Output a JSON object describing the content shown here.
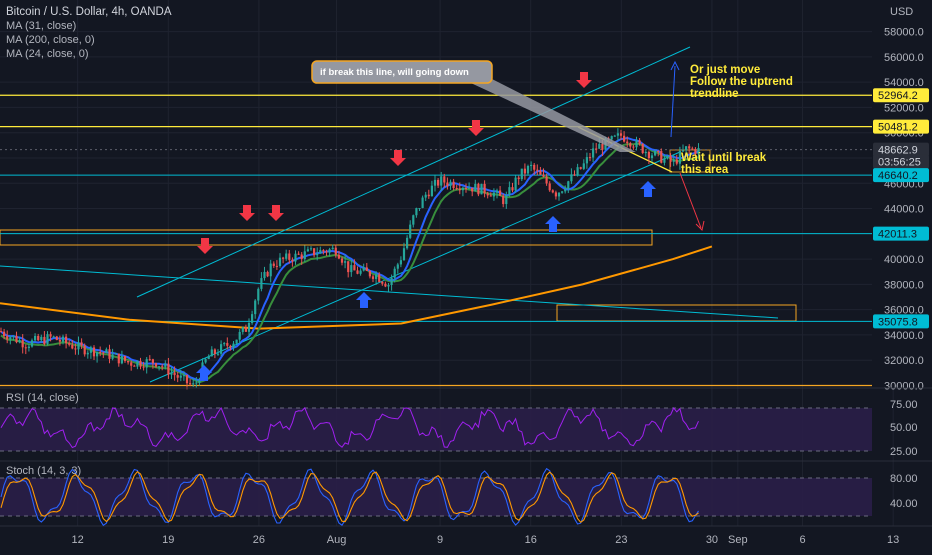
{
  "header": {
    "title": "Bitcoin / U.S. Dollar, 4h, OANDA",
    "indicators": [
      "MA (31, close)",
      "MA (200, close, 0)",
      "MA (24, close, 0)"
    ]
  },
  "price_axis": {
    "currency": "USD",
    "ticks": [
      "58000.0",
      "56000.0",
      "54000.0",
      "52000.0",
      "50000.0",
      "48000.0",
      "46000.0",
      "44000.0",
      "42000.0",
      "40000.0",
      "38000.0",
      "36000.0",
      "34000.0",
      "32000.0",
      "30000.0"
    ],
    "tags": [
      {
        "label": "52964.2",
        "kind": "level"
      },
      {
        "label": "50481.2",
        "kind": "level"
      },
      {
        "label": "48662.9",
        "kind": "last"
      },
      {
        "label": "03:56:25",
        "kind": "countdown"
      },
      {
        "label": "46640.2",
        "kind": "teal"
      },
      {
        "label": "42011.3",
        "kind": "teal"
      },
      {
        "label": "35075.8",
        "kind": "teal"
      }
    ]
  },
  "time_axis": [
    "12",
    "19",
    "26",
    "Aug",
    "9",
    "16",
    "23",
    "30",
    "Sep",
    "6",
    "13"
  ],
  "annotations": {
    "callout": "if break this line, will going down",
    "note_up": "Or just move\nFollow the uptrend\ntrendline",
    "note_wait": "Wait until break\nthis area"
  },
  "rsi": {
    "title": "RSI (14, close)",
    "ticks": [
      "75.00",
      "50.00",
      "25.00"
    ]
  },
  "stoch": {
    "title": "Stoch (14, 3, 3)",
    "ticks": [
      "80.00",
      "40.00"
    ]
  },
  "colors": {
    "bull": "#26a69a",
    "bear": "#ef5350",
    "ma200": "#ff9800",
    "ma31": "#2962ff",
    "ma24": "#388e3c",
    "level": "#ffeb3b",
    "teal": "#00bcd4",
    "arrow_down": "#f23645",
    "arrow_up": "#2962ff"
  },
  "chart_data": {
    "type": "candlestick",
    "ylim": [
      29800,
      60500
    ],
    "x_range": [
      "2021-07-06",
      "2021-09-16"
    ],
    "close_path": [
      [
        "2021-07-06",
        34300
      ],
      [
        "2021-07-08",
        33300
      ],
      [
        "2021-07-10",
        33800
      ],
      [
        "2021-07-12",
        33000
      ],
      [
        "2021-07-14",
        32600
      ],
      [
        "2021-07-16",
        31800
      ],
      [
        "2021-07-18",
        31900
      ],
      [
        "2021-07-20",
        30500
      ],
      [
        "2021-07-21",
        29900
      ],
      [
        "2021-07-22",
        32200
      ],
      [
        "2021-07-24",
        33500
      ],
      [
        "2021-07-25",
        34500
      ],
      [
        "2021-07-26",
        37800
      ],
      [
        "2021-07-27",
        39600
      ],
      [
        "2021-07-28",
        40000
      ],
      [
        "2021-07-30",
        40500
      ],
      [
        "2021-08-01",
        40800
      ],
      [
        "2021-08-02",
        39100
      ],
      [
        "2021-08-04",
        38800
      ],
      [
        "2021-08-05",
        38000
      ],
      [
        "2021-08-06",
        40200
      ],
      [
        "2021-08-07",
        43500
      ],
      [
        "2021-08-08",
        45300
      ],
      [
        "2021-08-09",
        46200
      ],
      [
        "2021-08-11",
        45800
      ],
      [
        "2021-08-13",
        45300
      ],
      [
        "2021-08-14",
        44600
      ],
      [
        "2021-08-15",
        46500
      ],
      [
        "2021-08-16",
        47300
      ],
      [
        "2021-08-18",
        45200
      ],
      [
        "2021-08-20",
        47300
      ],
      [
        "2021-08-21",
        48800
      ],
      [
        "2021-08-22",
        49200
      ],
      [
        "2021-08-23",
        49800
      ],
      [
        "2021-08-25",
        48500
      ],
      [
        "2021-08-27",
        47600
      ],
      [
        "2021-08-28",
        48700
      ],
      [
        "2021-08-29",
        48600
      ]
    ],
    "levels": [
      52964.2,
      50481.2,
      46640.2,
      42011.3,
      35075.8,
      30000
    ],
    "rsi_range": [
      0,
      100
    ],
    "stoch_range": [
      0,
      100
    ]
  }
}
